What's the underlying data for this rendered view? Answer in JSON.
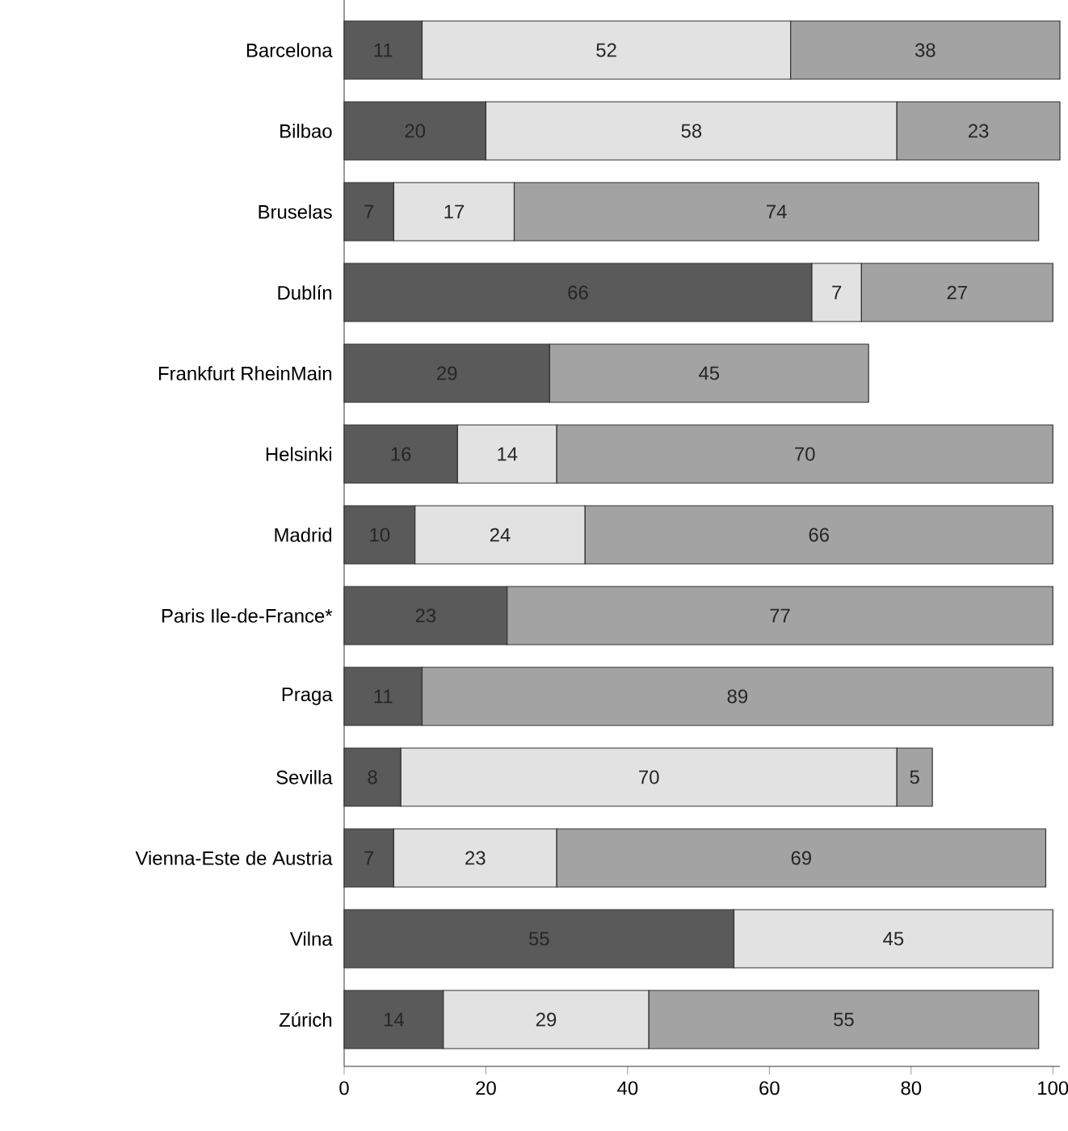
{
  "chart_data": {
    "type": "bar",
    "orientation": "horizontal",
    "stacked": true,
    "data_labels": true,
    "grid": false,
    "categories": [
      "Barcelona",
      "Bilbao",
      "Bruselas",
      "Dublín",
      "Frankfurt RheinMain",
      "Helsinki",
      "Madrid",
      "Paris Ile-de-France*",
      "Praga",
      "Sevilla",
      "Vienna-Este de Austria",
      "Vilna",
      "Zúrich"
    ],
    "xlim": [
      0,
      101
    ],
    "xticks": [
      0,
      20,
      40,
      60,
      80,
      100
    ],
    "series": [
      {
        "color": "#5a5a5a",
        "values": [
          11,
          20,
          7,
          66,
          29,
          16,
          10,
          23,
          11,
          8,
          7,
          55,
          14
        ]
      },
      {
        "color": "#e2e2e2",
        "values": [
          52,
          58,
          17,
          7,
          null,
          14,
          24,
          null,
          null,
          70,
          23,
          45,
          29
        ]
      },
      {
        "color": "#a3a3a3",
        "values": [
          38,
          23,
          74,
          27,
          45,
          70,
          66,
          77,
          89,
          5,
          69,
          null,
          55
        ]
      }
    ]
  }
}
